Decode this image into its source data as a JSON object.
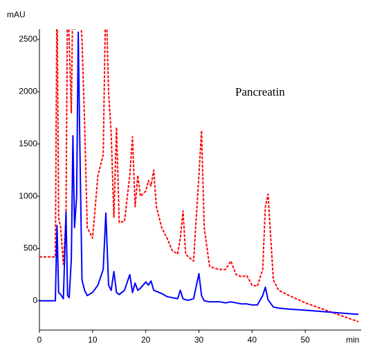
{
  "chart_data": {
    "type": "line",
    "y_label": "mAU",
    "x_label": "min",
    "annotation": "Pancreatin",
    "x": [
      0,
      3,
      3.3,
      3.6,
      4,
      4.5,
      5,
      5.3,
      5.6,
      6,
      6.3,
      6.6,
      7,
      7.3,
      7.6,
      8,
      8.5,
      9,
      10,
      11,
      12,
      12.5,
      13,
      13.5,
      14,
      14.5,
      15,
      16,
      17,
      17.5,
      18,
      18.5,
      19,
      20,
      20.5,
      21,
      21.5,
      22,
      23,
      24,
      25,
      26,
      26.5,
      27,
      27.5,
      28,
      29,
      30,
      30.5,
      31,
      32,
      33,
      34,
      35,
      36,
      37,
      38,
      39,
      40,
      41,
      42,
      42.5,
      43,
      44,
      45,
      47,
      50,
      55,
      60
    ],
    "series": [
      {
        "color": "#ff0000",
        "dash": true,
        "values": [
          420,
          420,
          3000,
          800,
          700,
          350,
          800,
          3000,
          2500,
          1800,
          3000,
          2600,
          3000,
          3000,
          2800,
          2500,
          1700,
          700,
          600,
          1200,
          1400,
          3000,
          2000,
          1600,
          800,
          1660,
          750,
          760,
          1200,
          1570,
          900,
          1200,
          1000,
          1050,
          1150,
          1100,
          1250,
          900,
          700,
          600,
          480,
          450,
          600,
          860,
          450,
          420,
          380,
          1200,
          1630,
          700,
          330,
          310,
          300,
          300,
          380,
          250,
          230,
          240,
          150,
          140,
          300,
          900,
          1020,
          200,
          100,
          50,
          -20,
          -110,
          -200
        ]
      },
      {
        "color": "#0000ff",
        "dash": false,
        "values": [
          0,
          0,
          720,
          80,
          60,
          20,
          850,
          50,
          30,
          400,
          1580,
          700,
          1000,
          2570,
          1500,
          200,
          100,
          50,
          80,
          150,
          300,
          840,
          150,
          100,
          280,
          80,
          60,
          100,
          250,
          80,
          170,
          100,
          120,
          180,
          150,
          190,
          100,
          90,
          70,
          40,
          30,
          20,
          100,
          20,
          10,
          5,
          20,
          260,
          50,
          0,
          -10,
          -10,
          -10,
          -20,
          -10,
          -20,
          -30,
          -30,
          -40,
          -40,
          50,
          130,
          10,
          -60,
          -70,
          -80,
          -90,
          -110,
          -130
        ]
      }
    ],
    "xlim": [
      0,
      60
    ],
    "xticks": [
      0,
      10,
      20,
      30,
      40,
      50
    ],
    "ylim": [
      -280,
      2600
    ],
    "yticks": [
      0,
      500,
      1000,
      1500,
      2000,
      2500
    ]
  }
}
